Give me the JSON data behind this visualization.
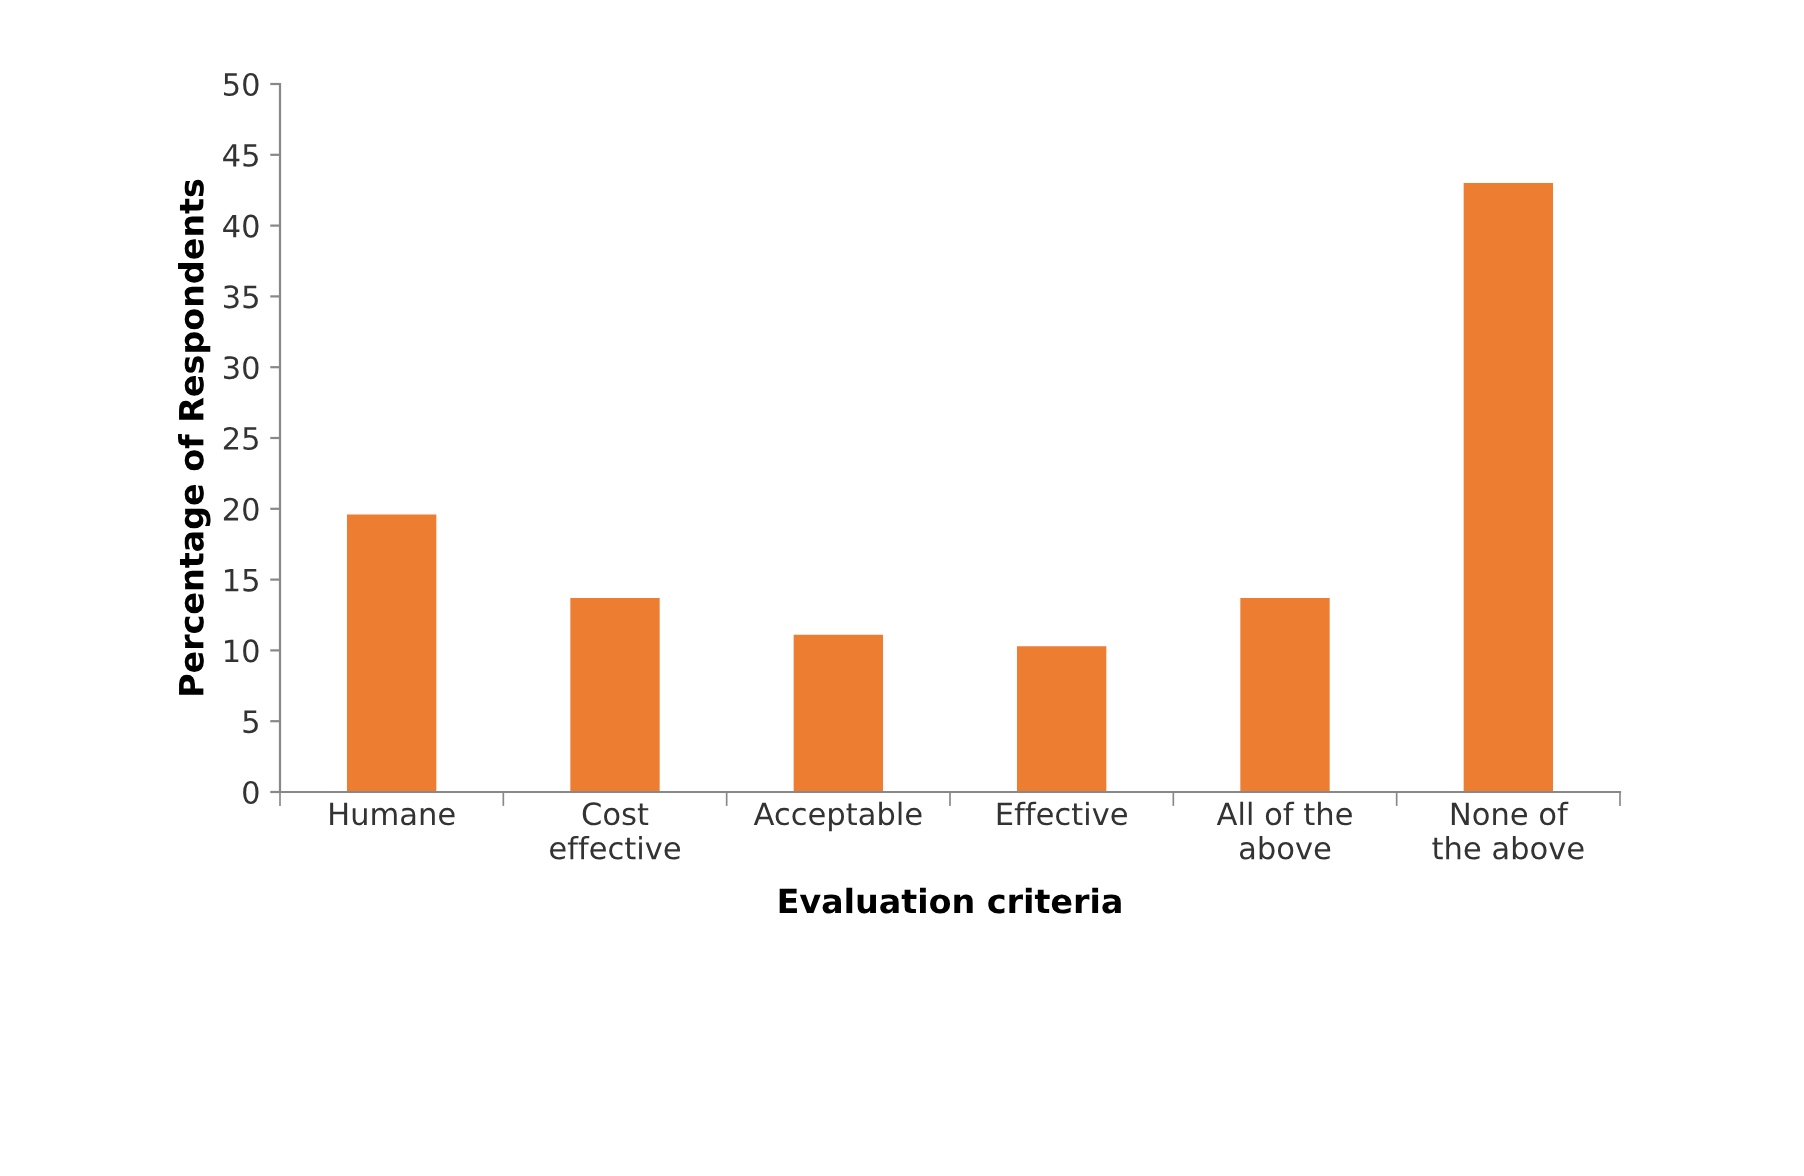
{
  "chart_data": {
    "type": "bar",
    "xlabel": "Evaluation criteria",
    "ylabel": "Percentage of Respondents",
    "categories": [
      "Humane",
      "Cost\neffective",
      "Acceptable",
      "Effective",
      "All of the\nabove",
      "None of\nthe above"
    ],
    "values": [
      19.6,
      13.7,
      11.1,
      10.3,
      13.7,
      43.0
    ],
    "color": "#ed7d31",
    "ylim": [
      0,
      50
    ],
    "yticks": [
      0,
      5,
      10,
      15,
      20,
      25,
      30,
      35,
      40,
      45,
      50
    ],
    "grid": false,
    "legend": false
  }
}
